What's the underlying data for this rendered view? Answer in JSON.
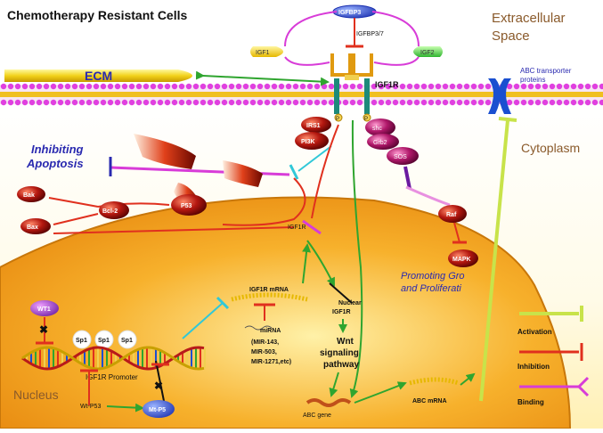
{
  "title": "Chemotherapy Resistant Cells",
  "regions": {
    "extracellular": "Extracellular\nSpace",
    "cytoplasm": "Cytoplasm",
    "nucleus": "Nucleus",
    "ecm": "ECM"
  },
  "receptors": {
    "igfbp": "IGFBP3",
    "igfbp37": "IGFBP3/7",
    "igf1": "IGF1",
    "igf2": "IGF2",
    "igf1r": "IGF1R",
    "abc_transporter": "ABC transporter\nproteins"
  },
  "signaling": {
    "irs1": "IRS1",
    "pi3k": "PI3K",
    "shc": "shc",
    "grb2": "Grb2",
    "sos": "SOS",
    "raf": "Raf",
    "mapk": "MAPK",
    "bak": "Bak",
    "bax": "Bax",
    "bcl2": "Bcl-2",
    "p53": "P53",
    "igf1r_inner": "IGF1R"
  },
  "phenotypes": {
    "inhibiting_apoptosis": "Inhibiting\nApoptosis",
    "promoting_growth": "Promoting Gro\nand Proliferati"
  },
  "nucleus_items": {
    "wt1": "WT1",
    "sp1": [
      "Sp1",
      "Sp1",
      "Sp1"
    ],
    "promoter": "IGF1R  Promoter",
    "wt_p53": "Wt-P53",
    "mt_p53": "Mt-P5",
    "mrna": "IGF1R mRNA",
    "mirna_title": "miRNA",
    "mirna_list": "(MIR-143,\nMIR-503,\nMIR-1271,etc)",
    "nuclear_igf1r": "Nuclear\nIGF1R",
    "wnt": "Wnt\nsignaling\npathway",
    "abc_gene": "ABC gene",
    "abc_mrna": "ABC mRNA"
  },
  "legend": {
    "activation": "Activation",
    "inhibition": "Inhibition",
    "binding": "Binding"
  },
  "colors": {
    "activation": "#c8e34a",
    "inhibition": "#e0301e",
    "binding": "#d83cd8",
    "green_arrow": "#2fa52f",
    "membrane": "#e040e0",
    "nucleus_fill": "#f6a51a",
    "cyto_fill": "#fff3b0",
    "title_brown": "#8a5a2b",
    "blue_label": "#2a2ab0"
  }
}
